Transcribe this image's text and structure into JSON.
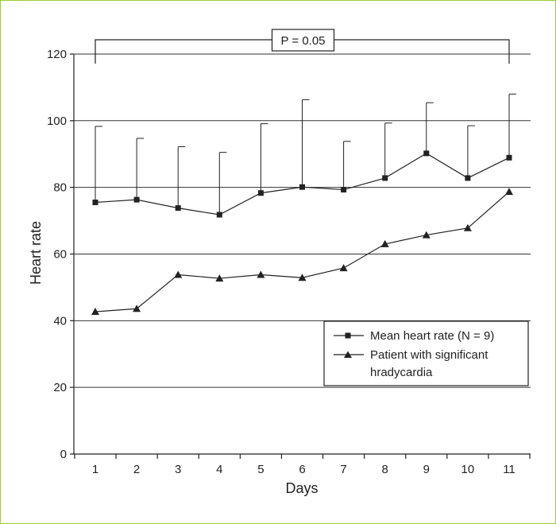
{
  "chart_data": {
    "type": "line",
    "xlabel": "Days",
    "ylabel": "Heart rate",
    "x": [
      1,
      2,
      3,
      4,
      5,
      6,
      7,
      8,
      9,
      10,
      11
    ],
    "ylim": [
      0,
      120
    ],
    "yticks": [
      0,
      20,
      40,
      60,
      80,
      100,
      120
    ],
    "grid": "horizontal",
    "legend_position": "right",
    "series": [
      {
        "name": "Mean heart rate (N = 9)",
        "marker": "square",
        "values": [
          75.5,
          76.3,
          73.8,
          71.8,
          78.3,
          80.1,
          79.3,
          82.8,
          90.2,
          82.8,
          88.9
        ],
        "error_upper": [
          98.3,
          94.7,
          92.2,
          90.5,
          99.1,
          106.3,
          93.8,
          99.3,
          105.4,
          98.5,
          108.0
        ]
      },
      {
        "name": "Patient with significant hradycardia",
        "marker": "triangle",
        "values": [
          42.7,
          43.6,
          53.8,
          52.7,
          53.8,
          52.9,
          55.8,
          63.0,
          65.7,
          67.8,
          78.7
        ]
      }
    ],
    "annotation": {
      "text": "P = 0.05",
      "from_x": 1,
      "to_x": 11
    },
    "legend": {
      "items": [
        "Mean heart rate (N = 9)",
        "Patient with significant"
      ],
      "wrapped_line": "hradycardia"
    },
    "colors": {
      "line": "#222222",
      "grid": "#333333",
      "border": "#9acd32"
    }
  }
}
